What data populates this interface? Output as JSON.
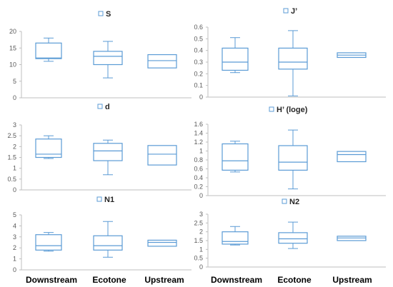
{
  "style": {
    "box_color": "#5b9bd5",
    "axis_color": "#bfbfbf",
    "tick_text_color": "#595959"
  },
  "categories": [
    "Downstream",
    "Ecotone",
    "Upstream"
  ],
  "chart_data": [
    {
      "type": "box",
      "legend": "S",
      "ylim": [
        0,
        20
      ],
      "yticks": [
        "0",
        "5",
        "10",
        "15",
        "20"
      ],
      "tick_values": [
        0,
        5,
        10,
        15,
        20
      ],
      "categories": [
        "Downstream",
        "Ecotone",
        "Upstream"
      ],
      "boxes": [
        {
          "min": 11,
          "q1": 11.8,
          "median": 12,
          "q3": 16.5,
          "max": 18
        },
        {
          "min": 6,
          "q1": 10,
          "median": 12.5,
          "q3": 14,
          "max": 17
        },
        {
          "min": 9,
          "q1": 9,
          "median": 11.2,
          "q3": 13,
          "max": 13
        }
      ]
    },
    {
      "type": "box",
      "legend": "J’",
      "ylim": [
        0,
        0.6
      ],
      "yticks": [
        "0",
        "0.1",
        "0.2",
        "0.3",
        "0.4",
        "0.5",
        "0.6"
      ],
      "tick_values": [
        0,
        0.1,
        0.2,
        0.3,
        0.4,
        0.5,
        0.6
      ],
      "categories": [
        "Downstream",
        "Ecotone",
        "Upstream"
      ],
      "boxes": [
        {
          "min": 0.21,
          "q1": 0.23,
          "median": 0.3,
          "q3": 0.42,
          "max": 0.51
        },
        {
          "min": 0.01,
          "q1": 0.24,
          "median": 0.3,
          "q3": 0.42,
          "max": 0.57
        },
        {
          "min": 0.34,
          "q1": 0.34,
          "median": 0.36,
          "q3": 0.38,
          "max": 0.38
        }
      ]
    },
    {
      "type": "box",
      "legend": "d",
      "ylim": [
        0,
        3
      ],
      "yticks": [
        "0",
        "0.5",
        "1",
        "1.5",
        "2",
        "2.5",
        "3"
      ],
      "tick_values": [
        0,
        0.5,
        1,
        1.5,
        2,
        2.5,
        3
      ],
      "categories": [
        "Downstream",
        "Ecotone",
        "Upstream"
      ],
      "boxes": [
        {
          "min": 1.45,
          "q1": 1.5,
          "median": 1.65,
          "q3": 2.35,
          "max": 2.5
        },
        {
          "min": 0.7,
          "q1": 1.35,
          "median": 1.8,
          "q3": 2.15,
          "max": 2.3
        },
        {
          "min": 1.15,
          "q1": 1.15,
          "median": 1.65,
          "q3": 2.05,
          "max": 2.05
        }
      ]
    },
    {
      "type": "box",
      "legend": "H’ (loge)",
      "ylim": [
        0,
        1.6
      ],
      "yticks": [
        "0",
        "0.2",
        "0.4",
        "0.6",
        "0.8",
        "1",
        "1.2",
        "1.4",
        "1.6"
      ],
      "tick_values": [
        0,
        0.2,
        0.4,
        0.6,
        0.8,
        1,
        1.2,
        1.4,
        1.6
      ],
      "categories": [
        "Downstream",
        "Ecotone",
        "Upstream"
      ],
      "boxes": [
        {
          "min": 0.53,
          "q1": 0.57,
          "median": 0.78,
          "q3": 1.16,
          "max": 1.22
        },
        {
          "min": 0.15,
          "q1": 0.57,
          "median": 0.75,
          "q3": 1.12,
          "max": 1.47
        },
        {
          "min": 0.76,
          "q1": 0.76,
          "median": 0.92,
          "q3": 0.99,
          "max": 0.99
        }
      ]
    },
    {
      "type": "box",
      "legend": "N1",
      "ylim": [
        0,
        5
      ],
      "yticks": [
        "0",
        "1",
        "2",
        "3",
        "4",
        "5"
      ],
      "tick_values": [
        0,
        1,
        2,
        3,
        4,
        5
      ],
      "categories": [
        "Downstream",
        "Ecotone",
        "Upstream"
      ],
      "boxes": [
        {
          "min": 1.7,
          "q1": 1.8,
          "median": 2.2,
          "q3": 3.2,
          "max": 3.4
        },
        {
          "min": 1.15,
          "q1": 1.8,
          "median": 2.2,
          "q3": 3.1,
          "max": 4.4
        },
        {
          "min": 2.15,
          "q1": 2.15,
          "median": 2.5,
          "q3": 2.7,
          "max": 2.7
        }
      ]
    },
    {
      "type": "box",
      "legend": "N2",
      "ylim": [
        0,
        3
      ],
      "yticks": [
        "0",
        "0.5",
        "1",
        "1.5",
        "2",
        "2.5",
        "3"
      ],
      "tick_values": [
        0,
        0.5,
        1,
        1.5,
        2,
        2.5,
        3
      ],
      "categories": [
        "Downstream",
        "Ecotone",
        "Upstream"
      ],
      "boxes": [
        {
          "min": 1.25,
          "q1": 1.3,
          "median": 1.45,
          "q3": 2,
          "max": 2.3
        },
        {
          "min": 1.05,
          "q1": 1.35,
          "median": 1.6,
          "q3": 1.95,
          "max": 2.55
        },
        {
          "min": 1.5,
          "q1": 1.5,
          "median": 1.65,
          "q3": 1.75,
          "max": 1.75
        }
      ]
    }
  ]
}
